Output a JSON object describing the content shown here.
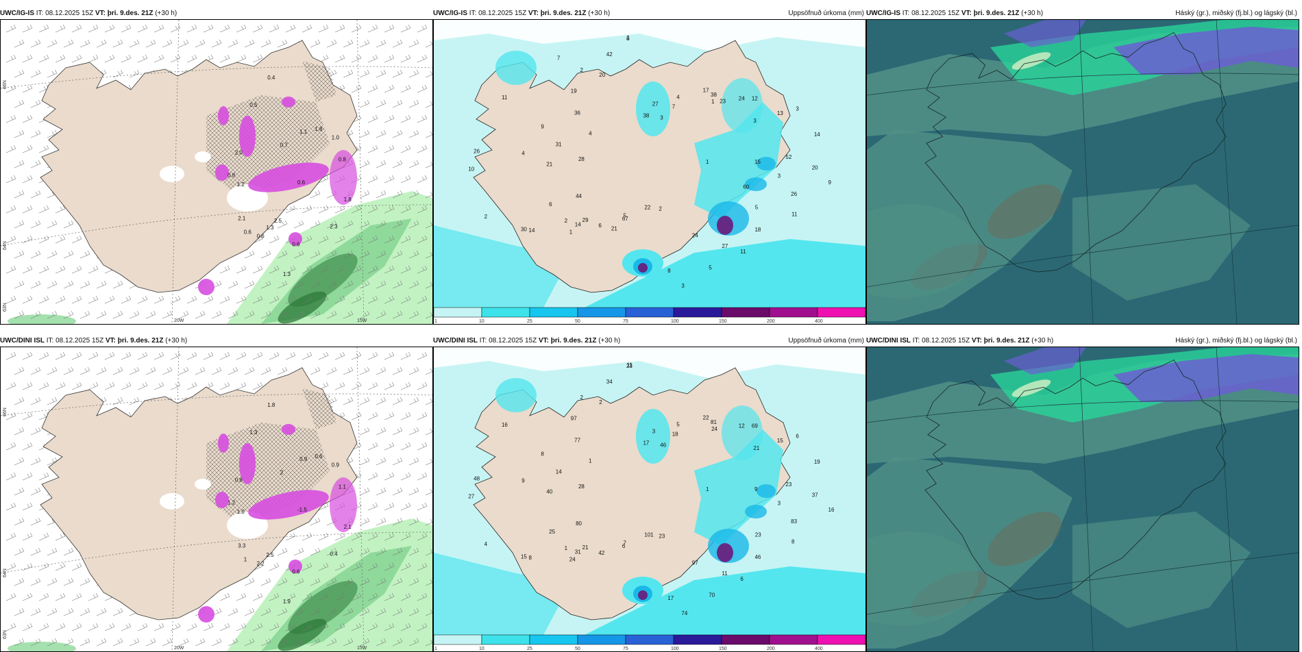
{
  "colors": {
    "land": "#eadbcc",
    "sea_light": "#c6f4f4",
    "precip_cyan": "#54e6ee",
    "precip_blue": "#1ab8e8",
    "precip_purple": "#6a1a7a",
    "precip_magenta": "#d74ee0",
    "green_light": "#c2f2c2",
    "green_dark": "#2e7a3a",
    "cloud_dark": "#2b6874",
    "cloud_mid": "#4f8f86",
    "cloud_green": "#29d39a",
    "cloud_purple": "#6a5fd1"
  },
  "rows": [
    {
      "model": "UWC/IG-IS",
      "panels": [
        {
          "model": "UWC/IG-IS",
          "it": " IT: 08.12.2025 15Z ",
          "vt_label": "VT:",
          "vt": "þri. 9.des. 21Z",
          "lead": " (+30 h)",
          "title": "",
          "axis_lat": [
            "66N",
            "64N",
            "63N"
          ],
          "axis_lon": [
            "20W",
            "15W"
          ],
          "labels": [
            "0.6",
            "0.6",
            "0.7",
            "0.6",
            "0.8",
            "1.0",
            "1.3",
            "0.5",
            "1.8",
            "2.1",
            "1.1",
            "1.3",
            "2.0",
            "0.8",
            "0.6",
            "0.4",
            "2.3",
            "1.2",
            "1.8",
            "2.5"
          ]
        },
        {
          "model": "UWC/IG-IS",
          "it": " IT: 08.12.2025 15Z ",
          "vt_label": "VT:",
          "vt": "þri. 9.des. 21Z",
          "lead": " (+30 h)",
          "title": "Uppsöfnuð úrkoma (mm)",
          "labels": [
            "1",
            "2",
            "3",
            "24",
            "4",
            "3",
            "5",
            "2",
            "9",
            "6",
            "1",
            "8",
            "9",
            "14",
            "6",
            "1",
            "11",
            "21",
            "12",
            "22",
            "19",
            "20",
            "29",
            "7",
            "11",
            "31",
            "13",
            "14",
            "42",
            "26",
            "44",
            "38",
            "3",
            "36",
            "52",
            "30",
            "38",
            "18",
            "28",
            "24",
            "67",
            "20",
            "3",
            "2",
            "4",
            "5",
            "4",
            "3",
            "1",
            "8",
            "5",
            "10",
            "17",
            "2",
            "11",
            "15",
            "14",
            "27",
            "27",
            "26",
            "23",
            "21",
            "7",
            "60"
          ]
        },
        {
          "model": "UWC/IG-IS",
          "it": " IT: 08.12.2025 15Z ",
          "vt_label": "VT:",
          "vt": "þri. 9.des. 21Z",
          "lead": " (+30 h)",
          "title": "Háský (gr.), miðský (fj.bl.) og lágský (bl.)"
        }
      ]
    },
    {
      "model": "UWC/DINI ISL",
      "panels": [
        {
          "model": "UWC/DINI ISL",
          "it": " IT: 08.12.2025 15Z ",
          "vt_label": "VT:",
          "vt": "þri. 9.des. 21Z",
          "lead": " (+30 h)",
          "title": "",
          "axis_lat": [
            "66N",
            "64N",
            "63N"
          ],
          "axis_lon": [
            "20W",
            "15W"
          ],
          "labels": [
            "-1.5",
            "1",
            "2",
            "0.6",
            "1.2",
            "0.9",
            "2.5",
            "1.3",
            "2.1",
            "3.3",
            "0.9",
            "1.9",
            "0.8",
            "1.1",
            "2.2",
            "1.8",
            "0.4",
            "1.0",
            "0.6"
          ]
        },
        {
          "model": "UWC/DINI ISL",
          "it": " IT: 08.12.2025 15Z ",
          "vt_label": "VT:",
          "vt": "þri. 9.des. 21Z",
          "lead": " (+30 h)",
          "title": "Uppsöfnuð úrkoma (mm)",
          "labels": [
            "1",
            "1",
            "46",
            "97",
            "9",
            "6",
            "7",
            "2",
            "16",
            "25",
            "24",
            "17",
            "8",
            "19",
            "42",
            "11",
            "8",
            "40",
            "69",
            "101",
            "97",
            "37",
            "21",
            "18",
            "6",
            "14",
            "15",
            "31",
            "34",
            "83",
            "80",
            "81",
            "74",
            "77",
            "23",
            "15",
            "17",
            "46",
            "28",
            "12",
            "6",
            "2",
            "3",
            "4",
            "5",
            "70",
            "1",
            "21",
            "24",
            "23",
            "23",
            "27",
            "22",
            "23",
            "16",
            "9",
            "8",
            "3",
            "11",
            "48"
          ]
        },
        {
          "model": "UWC/DINI ISL",
          "it": " IT: 08.12.2025 15Z ",
          "vt_label": "VT:",
          "vt": "þri. 9.des. 21Z",
          "lead": " (+30 h)",
          "title": "Háský (gr.), miðský (fj.bl.) og lágský (bl.)"
        }
      ]
    }
  ],
  "colorbar": {
    "ticks": [
      "1",
      "10",
      "25",
      "50",
      "75",
      "100",
      "150",
      "200",
      "400"
    ],
    "colors": [
      "#c6f4f4",
      "#3ee2ea",
      "#16c6ee",
      "#1696e6",
      "#2860d6",
      "#2a1a9a",
      "#6a0a6a",
      "#a0108e",
      "#ee10b0",
      "#f3a8ee"
    ]
  }
}
